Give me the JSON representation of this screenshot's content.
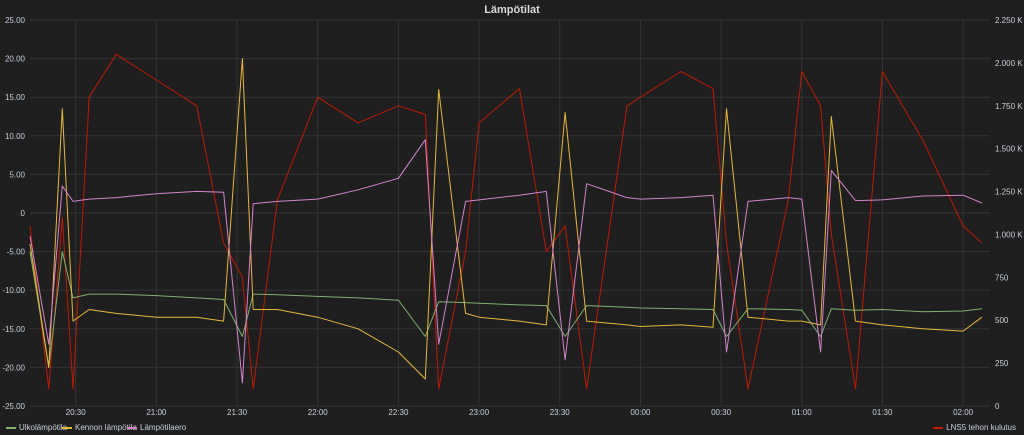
{
  "title": "Lämpötilat",
  "chart_data": {
    "type": "line",
    "x_ticks": [
      "20:30",
      "21:00",
      "21:30",
      "22:00",
      "22:30",
      "23:00",
      "23:30",
      "00:00",
      "00:30",
      "01:00",
      "01:30",
      "02:00"
    ],
    "left_axis": {
      "ticks": [
        "25.00",
        "20.00",
        "15.00",
        "10.00",
        "5.00",
        "0",
        "-5.00",
        "-10.00",
        "-15.00",
        "-20.00",
        "-25.00"
      ],
      "ylim": [
        -25,
        25
      ]
    },
    "right_axis": {
      "ticks": [
        "2.250 K",
        "2.000 K",
        "1.750 K",
        "1.500 K",
        "1.250 K",
        "1.000 K",
        "750",
        "500",
        "250",
        "0"
      ],
      "ylim": [
        0,
        2250
      ]
    },
    "x": [
      "20:13",
      "20:20",
      "20:25",
      "20:29",
      "20:35",
      "20:45",
      "21:00",
      "21:15",
      "21:25",
      "21:32",
      "21:36",
      "21:45",
      "22:00",
      "22:15",
      "22:30",
      "22:40",
      "22:45",
      "22:55",
      "23:00",
      "23:15",
      "23:25",
      "23:32",
      "23:40",
      "23:55",
      "00:00",
      "00:15",
      "00:27",
      "00:32",
      "00:40",
      "00:55",
      "01:00",
      "01:07",
      "01:11",
      "01:20",
      "01:30",
      "01:45",
      "02:00",
      "02:07"
    ],
    "series": [
      {
        "name": "Ulkolämpötila",
        "color": "#7eb26d",
        "axis": "left",
        "values": [
          -5,
          -20,
          -5,
          -11,
          -10.5,
          -10.5,
          -10.7,
          -11,
          -11.2,
          -16,
          -10.5,
          -10.6,
          -10.8,
          -11,
          -11.3,
          -16,
          -11.5,
          -11.6,
          -11.7,
          -11.9,
          -12,
          -16,
          -12,
          -12.2,
          -12.3,
          -12.4,
          -12.5,
          -16,
          -12.4,
          -12.5,
          -12.6,
          -16,
          -12.4,
          -12.6,
          -12.5,
          -12.8,
          -12.7,
          -12.4
        ]
      },
      {
        "name": "Kennon lämpötila",
        "color": "#eab839",
        "axis": "left",
        "values": [
          -4,
          -20,
          13.5,
          -14,
          -12.5,
          -13,
          -13.5,
          -13.5,
          -14,
          20,
          -12.5,
          -12.5,
          -13.5,
          -15,
          -18,
          -21.5,
          16,
          -13,
          -13.5,
          -14,
          -14.5,
          13,
          -14,
          -14.5,
          -14.7,
          -14.5,
          -14.8,
          13.5,
          -13.5,
          -14,
          -14,
          -14.5,
          12.5,
          -14,
          -14.5,
          -15,
          -15.3,
          -13.5
        ]
      },
      {
        "name": "Lämpötilaero",
        "color": "#d683ce",
        "axis": "left",
        "values": [
          -3,
          -17,
          3.5,
          1.5,
          1.8,
          2,
          2.5,
          2.8,
          2.7,
          -22,
          1.2,
          1.5,
          1.8,
          3,
          4.5,
          9.5,
          -17,
          1.5,
          1.7,
          2.3,
          2.8,
          -19,
          3.8,
          2,
          1.8,
          2,
          2.3,
          -18,
          1.5,
          2,
          1.8,
          -18,
          5.5,
          1.6,
          1.7,
          2.2,
          2.3,
          1.3
        ]
      },
      {
        "name": "LNS5 tehon kulutus",
        "color": "#bf1b00",
        "axis": "right",
        "values": [
          1050,
          100,
          1100,
          100,
          1800,
          2050,
          1900,
          1750,
          950,
          750,
          100,
          1200,
          1800,
          1650,
          1750,
          1700,
          100,
          900,
          1650,
          1850,
          900,
          1050,
          100,
          1750,
          1800,
          1950,
          1850,
          950,
          100,
          1200,
          1950,
          1750,
          1000,
          100,
          1950,
          1550,
          1050,
          950
        ]
      }
    ]
  }
}
